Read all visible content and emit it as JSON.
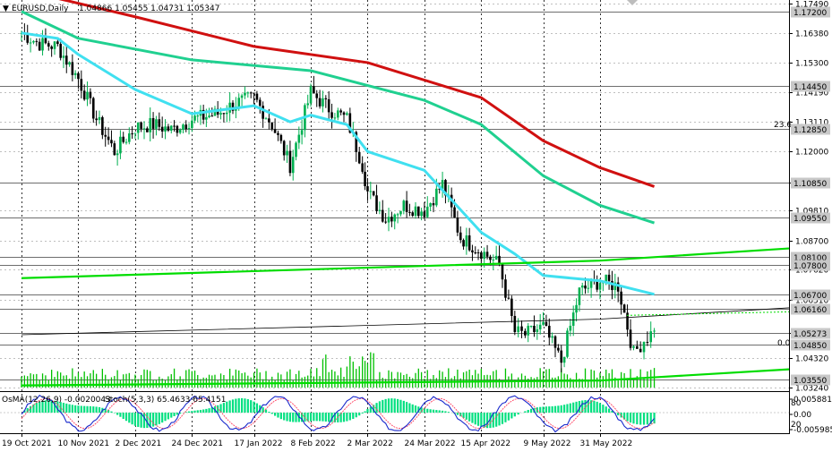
{
  "header": {
    "symbol": "EURUSD,Daily",
    "ohlc": "1.04866 1.05455 1.04731 1.05347"
  },
  "colors": {
    "background": "#ffffff",
    "grid": "#000000",
    "candle_up": "#00b050",
    "candle_down": "#000000",
    "ma_red": "#d01010",
    "ma_green": "#20d090",
    "ma_cyan": "#40e0f0",
    "trend_green": "#00dd00",
    "volume": "#00c000",
    "osma": "#00e080",
    "stoch_main": "#1a2acc",
    "stoch_signal": "#ff4060"
  },
  "chart_data": [
    {
      "type": "candlestick",
      "series": [
        {
          "name": "EURUSD,Daily",
          "points": [
            [
              "19 Oct 2021",
              1.164
            ],
            [
              "26 Oct 2021",
              1.16
            ],
            [
              "2 Nov 2021",
              1.159
            ],
            [
              "10 Nov 2021",
              1.147
            ],
            [
              "17 Nov 2021",
              1.132
            ],
            [
              "24 Nov 2021",
              1.12
            ],
            [
              "2 Dec 2021",
              1.129
            ],
            [
              "9 Dec 2021",
              1.13
            ],
            [
              "16 Dec 2021",
              1.128
            ],
            [
              "24 Dec 2021",
              1.132
            ],
            [
              "3 Jan 2022",
              1.134
            ],
            [
              "10 Jan 2022",
              1.138
            ],
            [
              "17 Jan 2022",
              1.14
            ],
            [
              "24 Jan 2022",
              1.13
            ],
            [
              "31 Jan 2022",
              1.115
            ],
            [
              "8 Feb 2022",
              1.142
            ],
            [
              "15 Feb 2022",
              1.136
            ],
            [
              "22 Feb 2022",
              1.132
            ],
            [
              "28 Feb 2022",
              1.115
            ],
            [
              "2 Mar 2022",
              1.105
            ],
            [
              "9 Mar 2022",
              1.095
            ],
            [
              "16 Mar 2022",
              1.1
            ],
            [
              "24 Mar 2022",
              1.098
            ],
            [
              "31 Mar 2022",
              1.108
            ],
            [
              "7 Apr 2022",
              1.088
            ],
            [
              "15 Apr 2022",
              1.083
            ],
            [
              "22 Apr 2022",
              1.078
            ],
            [
              "28 Apr 2022",
              1.053
            ],
            [
              "2 May 2022",
              1.052
            ],
            [
              "9 May 2022",
              1.055
            ],
            [
              "16 May 2022",
              1.042
            ],
            [
              "23 May 2022",
              1.068
            ],
            [
              "31 May 2022",
              1.072
            ],
            [
              "7 Jun 2022",
              1.07
            ],
            [
              "13 Jun 2022",
              1.045
            ],
            [
              "17 Jun 2022",
              1.05
            ],
            [
              "21 Jun 2022",
              1.0535
            ]
          ]
        },
        {
          "name": "MA red",
          "points": [
            [
              "19 Oct 2021",
              1.18
            ],
            [
              "2 Dec 2021",
              1.17
            ],
            [
              "17 Jan 2022",
              1.159
            ],
            [
              "2 Mar 2022",
              1.153
            ],
            [
              "15 Apr 2022",
              1.14
            ],
            [
              "9 May 2022",
              1.124
            ],
            [
              "31 May 2022",
              1.114
            ],
            [
              "21 Jun 2022",
              1.107
            ]
          ]
        },
        {
          "name": "MA green",
          "points": [
            [
              "19 Oct 2021",
              1.172
            ],
            [
              "10 Nov 2021",
              1.162
            ],
            [
              "24 Dec 2021",
              1.154
            ],
            [
              "8 Feb 2022",
              1.15
            ],
            [
              "24 Mar 2022",
              1.139
            ],
            [
              "15 Apr 2022",
              1.13
            ],
            [
              "9 May 2022",
              1.111
            ],
            [
              "31 May 2022",
              1.1
            ],
            [
              "21 Jun 2022",
              1.0935
            ]
          ]
        },
        {
          "name": "MA cyan",
          "points": [
            [
              "19 Oct 2021",
              1.164
            ],
            [
              "2 Nov 2021",
              1.162
            ],
            [
              "10 Nov 2021",
              1.156
            ],
            [
              "2 Dec 2021",
              1.143
            ],
            [
              "24 Dec 2021",
              1.134
            ],
            [
              "17 Jan 2022",
              1.137
            ],
            [
              "31 Jan 2022",
              1.131
            ],
            [
              "8 Feb 2022",
              1.1335
            ],
            [
              "22 Feb 2022",
              1.13
            ],
            [
              "2 Mar 2022",
              1.12
            ],
            [
              "24 Mar 2022",
              1.113
            ],
            [
              "15 Apr 2022",
              1.09
            ],
            [
              "28 Apr 2022",
              1.082
            ],
            [
              "9 May 2022",
              1.074
            ],
            [
              "31 May 2022",
              1.072
            ],
            [
              "21 Jun 2022",
              1.067
            ]
          ]
        },
        {
          "name": "Trendline top",
          "points": [
            [
              "19 Oct 2021",
              1.073
            ],
            [
              "31 May 2022",
              1.0795
            ],
            [
              "21 Jun 2022",
              1.0808
            ]
          ]
        },
        {
          "name": "Trendline bottom",
          "points": [
            [
              "19 Oct 2021",
              1.0332
            ],
            [
              "31 May 2022",
              1.035
            ],
            [
              "21 Jun 2022",
              1.0362
            ]
          ]
        },
        {
          "name": "Channel thin",
          "points": [
            [
              "19 Oct 2021",
              1.052
            ],
            [
              "31 May 2022",
              1.0578
            ],
            [
              "21 Jun 2022",
              1.059
            ]
          ]
        }
      ],
      "levels": [
        "1.17200",
        "1.14450",
        "1.12850",
        "1.10850",
        "1.09550",
        "1.08100",
        "1.07800",
        "1.06700",
        "1.06160",
        "1.05273",
        "1.04850",
        "1.03550"
      ],
      "y_ticks": [
        "1.17490",
        "1.16380",
        "1.15300",
        "1.14190",
        "1.13110",
        "1.12000",
        "1.10850",
        "1.09810",
        "1.08700",
        "1.07620",
        "1.06510",
        "1.05273",
        "1.04320",
        "1.03240"
      ],
      "fib_labels": [
        "23.6",
        "0.0"
      ],
      "ylim": [
        1.0324,
        1.1749
      ],
      "x_ticks": [
        "19 Oct 2021",
        "10 Nov 2021",
        "2 Dec 2021",
        "24 Dec 2021",
        "17 Jan 2022",
        "8 Feb 2022",
        "2 Mar 2022",
        "24 Mar 2022",
        "15 Apr 2022",
        "9 May 2022",
        "31 May 2022"
      ],
      "grid": true
    },
    {
      "type": "bar",
      "title": "OsMA(12,26,9) -0.0020043",
      "stoch_title": "Stoch(5,3,3) 65.4633 65.4151",
      "y_ticks": [
        "0.0058815",
        "0.00",
        "-0.005985"
      ],
      "stoch_levels": [
        "80",
        "20"
      ],
      "ylim": [
        -0.006,
        0.006
      ]
    }
  ]
}
